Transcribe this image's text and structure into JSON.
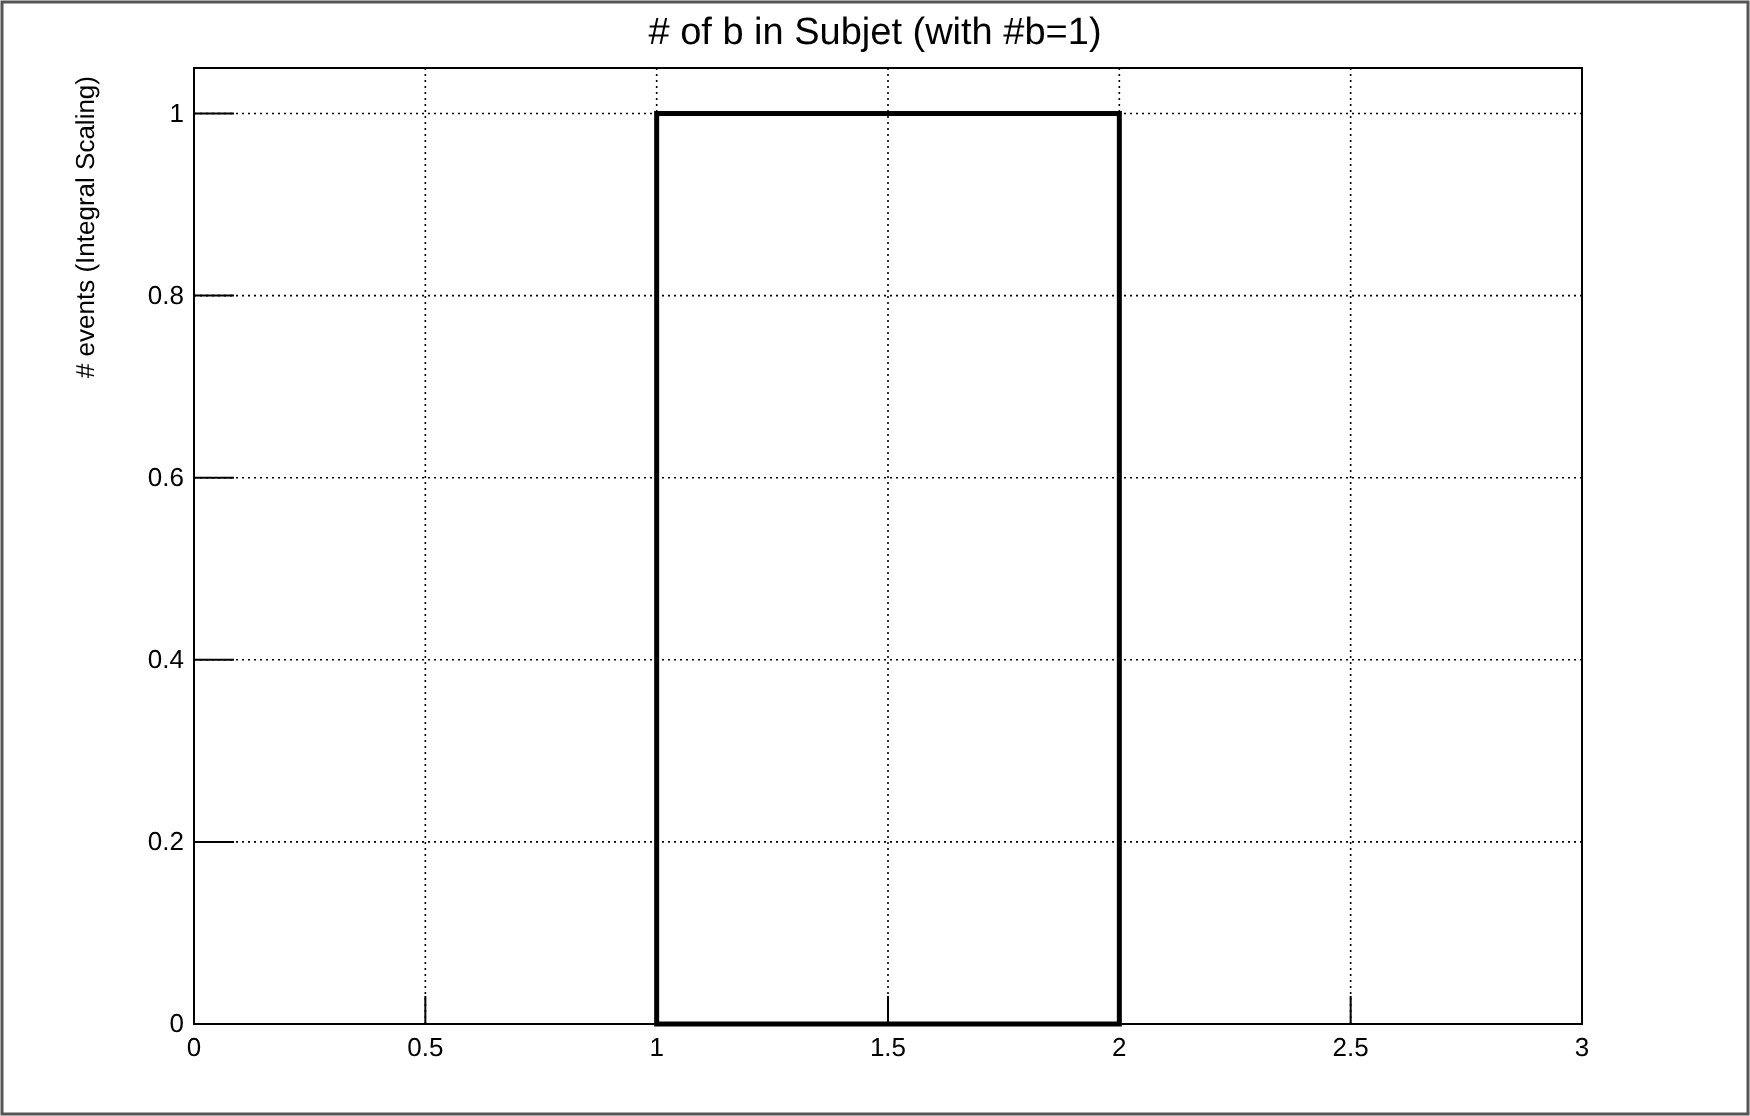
{
  "chart_data": {
    "type": "histogram",
    "title": "# of b in Subjet (with #b=1)",
    "ylabel": "# events (Integral Scaling)",
    "bins": [
      0,
      1,
      2,
      3
    ],
    "values": [
      0,
      1,
      0
    ],
    "color": "#000000",
    "xlim": [
      0,
      3
    ],
    "xticks": [
      0,
      0.5,
      1,
      1.5,
      2,
      2.5,
      3
    ],
    "ylim": [
      0,
      1.05
    ],
    "yticks": [
      0,
      0.2,
      0.4,
      0.6,
      0.8,
      1
    ],
    "grid": true
  }
}
